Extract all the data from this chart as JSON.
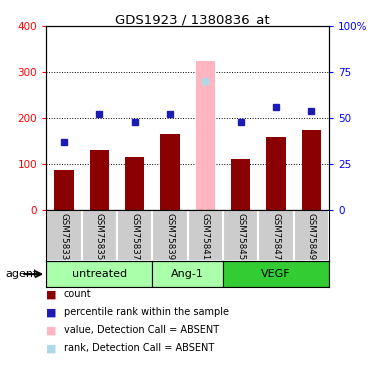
{
  "title": "GDS1923 / 1380836_at",
  "samples": [
    "GSM75833",
    "GSM75835",
    "GSM75837",
    "GSM75839",
    "GSM75841",
    "GSM75845",
    "GSM75847",
    "GSM75849"
  ],
  "counts": [
    88,
    130,
    115,
    165,
    325,
    110,
    160,
    175
  ],
  "percentiles": [
    37,
    52,
    48,
    52,
    70,
    48,
    56,
    54
  ],
  "absent": [
    false,
    false,
    false,
    false,
    true,
    false,
    false,
    false
  ],
  "bar_color_present": "#8B0000",
  "bar_color_absent": "#FFB6C1",
  "dot_color_present": "#1C1CB4",
  "dot_color_absent": "#ADD8E6",
  "ylim_left": [
    0,
    400
  ],
  "ylim_right": [
    0,
    100
  ],
  "yticks_left": [
    0,
    100,
    200,
    300,
    400
  ],
  "yticks_right": [
    0,
    25,
    50,
    75,
    100
  ],
  "yticklabels_left": [
    "0",
    "100",
    "200",
    "300",
    "400"
  ],
  "yticklabels_right": [
    "0",
    "25",
    "50",
    "75",
    "100%"
  ],
  "groups": [
    {
      "label": "untreated",
      "xmin": -0.5,
      "xmax": 2.5,
      "color": "#AAFFAA"
    },
    {
      "label": "Ang-1",
      "xmin": 2.5,
      "xmax": 4.5,
      "color": "#AAFFAA"
    },
    {
      "label": "VEGF",
      "xmin": 4.5,
      "xmax": 7.5,
      "color": "#33CC33"
    }
  ],
  "legend_items": [
    {
      "color": "#8B0000",
      "label": "count"
    },
    {
      "color": "#1C1CB4",
      "label": "percentile rank within the sample"
    },
    {
      "color": "#FFB6C1",
      "label": "value, Detection Call = ABSENT"
    },
    {
      "color": "#ADD8E6",
      "label": "rank, Detection Call = ABSENT"
    }
  ],
  "agent_label": "agent",
  "bar_width": 0.55,
  "dot_size": 5,
  "grid_values": [
    100,
    200,
    300
  ],
  "sample_bg_color": "#CCCCCC",
  "sample_edge_color": "#FFFFFF"
}
